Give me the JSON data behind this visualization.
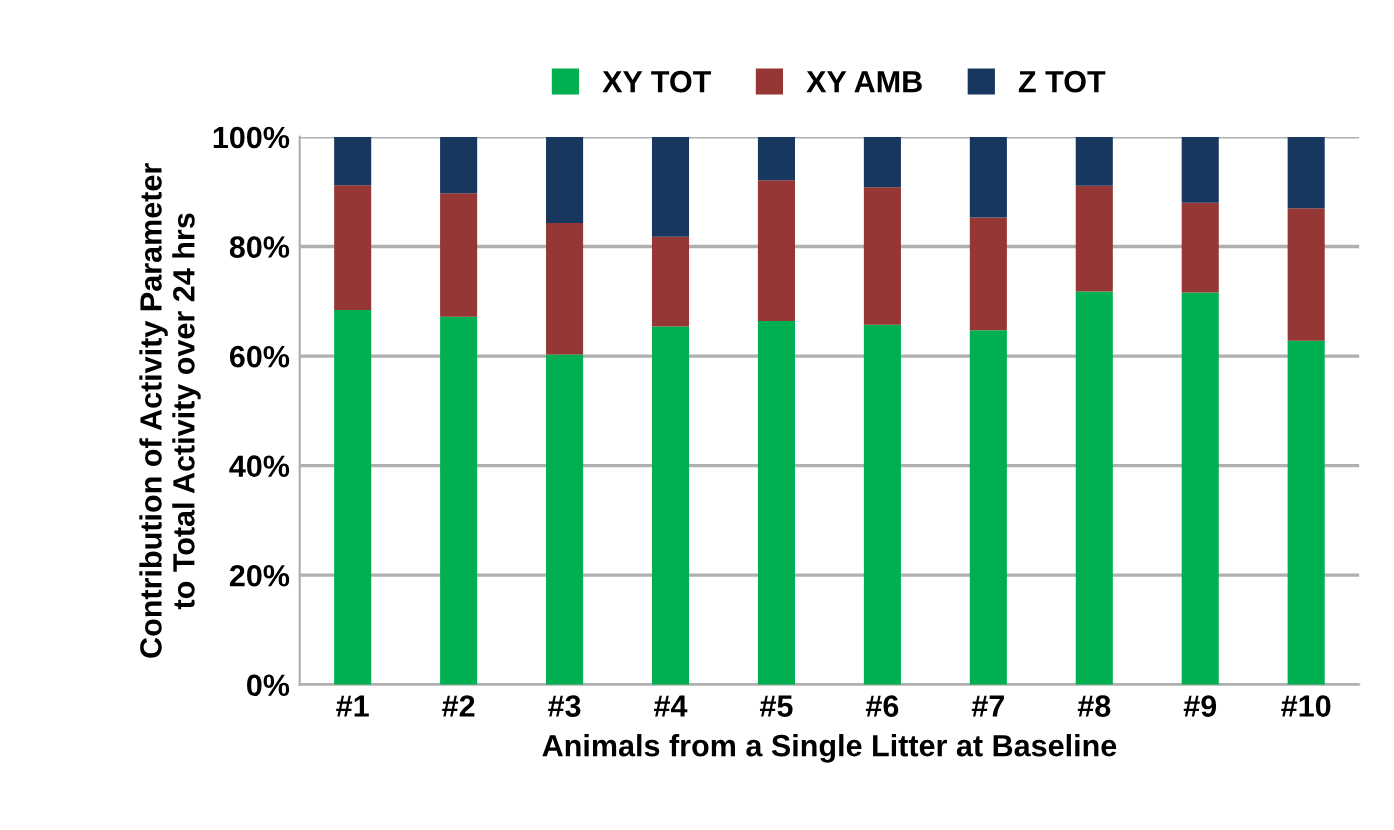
{
  "chart_data": {
    "type": "bar",
    "stacked": true,
    "categories": [
      "#1",
      "#2",
      "#3",
      "#4",
      "#5",
      "#6",
      "#7",
      "#8",
      "#9",
      "#10"
    ],
    "series": [
      {
        "name": "XY TOT",
        "color": "#00b050",
        "values": [
          68.4,
          67.2,
          60.3,
          65.4,
          66.4,
          65.7,
          64.7,
          71.8,
          71.6,
          62.8
        ]
      },
      {
        "name": "XY AMB",
        "color": "#953735",
        "values": [
          22.8,
          22.5,
          24.0,
          16.4,
          25.7,
          25.1,
          20.6,
          19.3,
          16.4,
          24.2
        ]
      },
      {
        "name": "Z TOT",
        "color": "#17375e",
        "values": [
          8.8,
          10.3,
          15.7,
          18.2,
          7.9,
          9.2,
          14.7,
          8.9,
          12.0,
          13.0
        ]
      }
    ],
    "xlabel": "Animals from a Single Litter at Baseline",
    "ylabel": "Contribution of Activity Parameter\nto Total Activity over 24 hrs",
    "ylim": [
      0,
      100
    ],
    "yticks": [
      {
        "value": 0,
        "label": "0%"
      },
      {
        "value": 20,
        "label": "20%"
      },
      {
        "value": 40,
        "label": "40%"
      },
      {
        "value": 60,
        "label": "60%"
      },
      {
        "value": 80,
        "label": "80%"
      },
      {
        "value": 100,
        "label": "100%"
      }
    ],
    "grid": "y",
    "legend": "top"
  }
}
